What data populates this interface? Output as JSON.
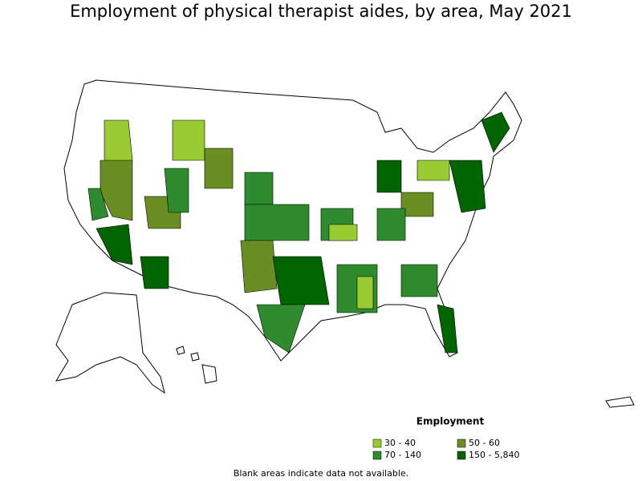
{
  "title": "Employment of physical therapist aides, by area, May 2021",
  "legend": {
    "title": "Employment",
    "items": [
      {
        "label": "30 - 40",
        "color": "#99cc33"
      },
      {
        "label": "50 - 60",
        "color": "#6b8e23"
      },
      {
        "label": "70 - 140",
        "color": "#2e8b2e"
      },
      {
        "label": "150 - 5,840",
        "color": "#006400"
      }
    ]
  },
  "note": "Blank areas indicate data not available."
}
